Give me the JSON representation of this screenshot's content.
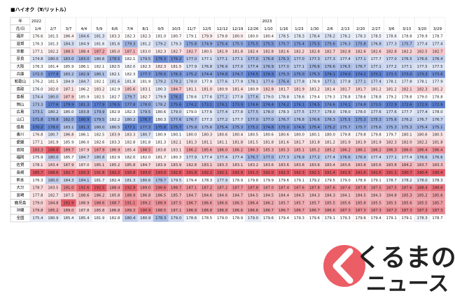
{
  "title": "■ハイオク（¥/リットル）",
  "table": {
    "year_header": "年",
    "date_header": "月/日",
    "years": [
      "2022",
      null,
      null,
      null,
      null,
      null,
      null,
      null,
      null,
      null,
      null,
      null,
      null,
      null,
      null,
      "2023",
      null,
      null,
      null,
      null,
      null,
      null,
      null,
      null,
      null,
      null,
      null
    ],
    "dates": [
      "1/4",
      "2/7",
      "3/7",
      "4/4",
      "5/9",
      "6/6",
      "7/4",
      "8/1",
      "9/5",
      "10/3",
      "11/7",
      "12/5",
      "12/12",
      "12/19",
      "12/26",
      "1/10",
      "1/16",
      "1/23",
      "1/30",
      "2/6",
      "2/13",
      "2/20",
      "2/27",
      "3/6",
      "3/13",
      "3/20",
      "3/29"
    ],
    "color_low": "#5b7fd0",
    "color_mid": "#ffffff",
    "color_high": "#e45a66",
    "rows": [
      {
        "name": "福井",
        "values": [
          "176.6",
          "181.5",
          "186.4",
          "184.6",
          "181.3",
          "183.3",
          "182.3",
          "182.3",
          "181.0",
          "180.7",
          "179.1",
          "179.9",
          "179.8",
          "180.0",
          "180.0",
          "180.4",
          "178.5",
          "178.3",
          "178.4",
          "178.2",
          "178.2",
          "178.3",
          "178.5",
          "178.6",
          "178.8",
          "178.9",
          "178.7"
        ]
      },
      {
        "name": "滋賀",
        "values": [
          "176.3",
          "181.3",
          "184.3",
          "184.9",
          "181.6",
          "181.6",
          "179.3",
          "181.2",
          "179.2",
          "179.3",
          "175.8",
          "174.9",
          "175.4",
          "175.5",
          "175.5",
          "175.5",
          "175.7",
          "175.4",
          "175.5",
          "175.6",
          "176.3",
          "175.8",
          "176.8",
          "177.3",
          "175.7",
          "177.4",
          "177.4"
        ]
      },
      {
        "name": "京都",
        "values": [
          "177.1",
          "182.2",
          "188.5",
          "188.4",
          "187.2",
          "185.0",
          "187.1",
          "183.0",
          "182.3",
          "182.7",
          "182.7",
          "180.5",
          "181.9",
          "181.8",
          "182.4",
          "182.8",
          "182.6",
          "182.2",
          "182.8",
          "182.7",
          "182.8",
          "182.6",
          "182.6",
          "182.8",
          "182.2",
          "182.5",
          "182.7"
        ]
      },
      {
        "name": "奈良",
        "values": [
          "174.8",
          "180.0",
          "183.0",
          "183.0",
          "180.6",
          "178.5",
          "182.1",
          "179.5",
          "176.3",
          "176.2",
          "177.0",
          "177.1",
          "177.1",
          "177.1",
          "177.0",
          "176.8",
          "176.3",
          "177.0",
          "177.3",
          "177.3",
          "177.4",
          "177.1",
          "177.7",
          "177.0",
          "176.5",
          "176.6",
          "176.4"
        ]
      },
      {
        "name": "大阪",
        "values": [
          "176.3",
          "181.4",
          "185.9",
          "186.1",
          "182.1",
          "182.5",
          "182.0",
          "182.3",
          "182.3",
          "181.5",
          "177.9",
          "176.8",
          "176.9",
          "177.0",
          "177.4",
          "176.9",
          "177.0",
          "177.1",
          "176.6",
          "176.6",
          "176.5",
          "176.7",
          "177.1",
          "177.2",
          "177.1",
          "177.5",
          "177.5"
        ]
      },
      {
        "name": "兵庫",
        "values": [
          "172.5",
          "177.8",
          "183.2",
          "182.9",
          "180.1",
          "182.1",
          "182.3",
          "177.7",
          "176.5",
          "176.3",
          "175.2",
          "174.4",
          "174.8",
          "174.7",
          "174.5",
          "174.3",
          "175.3",
          "175.0",
          "175.3",
          "174.1",
          "174.0",
          "174.2",
          "173.1",
          "173.3",
          "173.0",
          "173.3",
          "173.6"
        ]
      },
      {
        "name": "和歌山",
        "values": [
          "176.2",
          "181.5",
          "184.9",
          "184.7",
          "182.1",
          "181.6",
          "181.8",
          "181.9",
          "179.2",
          "178.2",
          "178.0",
          "177.9",
          "177.6",
          "177.9",
          "178.1",
          "177.6",
          "176.4",
          "177.8",
          "178.9",
          "177.1",
          "177.8",
          "177.1",
          "177.4",
          "178.1",
          "177.8",
          "178.1",
          "177.9"
        ]
      },
      {
        "name": "鳥取",
        "values": [
          "176.0",
          "182.0",
          "187.1",
          "186.2",
          "183.2",
          "182.9",
          "185.6",
          "183.1",
          "180.3",
          "184.7",
          "181.1",
          "181.0",
          "180.9",
          "181.4",
          "180.9",
          "182.8",
          "181.7",
          "181.9",
          "181.2",
          "181.4",
          "181.7",
          "181.7",
          "181.2",
          "181.2",
          "182.1",
          "182.3",
          "181.2"
        ]
      },
      {
        "name": "島根",
        "values": [
          "174.4",
          "180.0",
          "187.9",
          "185.9",
          "182.5",
          "182.7",
          "179.7",
          "182.7",
          "179.9",
          "176.2",
          "178.6",
          "177.6",
          "177.2",
          "177.8",
          "177.6",
          "179.0",
          "178.8",
          "178.6",
          "179.4",
          "179.3",
          "178.8",
          "178.6",
          "178.8",
          "179.2",
          "178.8",
          "179.0",
          "178.8"
        ]
      },
      {
        "name": "岡山",
        "values": [
          "173.3",
          "177.6",
          "179.9",
          "181.3",
          "177.9",
          "176.5",
          "177.8",
          "178.0",
          "178.2",
          "175.6",
          "174.2",
          "173.1",
          "174.1",
          "173.9",
          "174.6",
          "174.4",
          "174.2",
          "174.1",
          "174.5",
          "174.6",
          "174.1",
          "174.8",
          "173.5",
          "172.9",
          "172.6",
          "172.9",
          "172.9"
        ]
      },
      {
        "name": "広島",
        "values": [
          "173.1",
          "180.2",
          "185.0",
          "183.8",
          "179.9",
          "182.9",
          "182.3",
          "179.5",
          "180.6",
          "179.0",
          "179.0",
          "177.6",
          "177.4",
          "177.8",
          "177.5",
          "178.0",
          "178.3",
          "177.5",
          "177.7",
          "178.0",
          "178.0",
          "178.0",
          "177.6",
          "177.6",
          "177.7",
          "177.4",
          "178.0"
        ]
      },
      {
        "name": "山口",
        "values": [
          "171.8",
          "178.8",
          "182.0",
          "180.9",
          "179.5",
          "182.2",
          "180.2",
          "176.7",
          "180.3",
          "177.6",
          "176.7",
          "177.3",
          "177.2",
          "177.7",
          "177.0",
          "177.0",
          "176.7",
          "176.8",
          "176.6",
          "176.3",
          "175.5",
          "175.3",
          "175.3",
          "175.6",
          "176.2",
          "176.7",
          "176.7"
        ]
      },
      {
        "name": "徳島",
        "values": [
          "170.2",
          "178.0",
          "183.1",
          "181.3",
          "180.0",
          "180.5",
          "177.1",
          "177.3",
          "175.8",
          "175.7",
          "175.9",
          "175.6",
          "175.4",
          "175.3",
          "175.2",
          "174.8",
          "175.0",
          "174.9",
          "175.4",
          "175.2",
          "175.7",
          "175.7",
          "175.6",
          "175.3",
          "175.3",
          "175.4",
          "175.1"
        ]
      },
      {
        "name": "香川",
        "values": [
          "176.8",
          "180.7",
          "186.8",
          "186.1",
          "182.5",
          "183.9",
          "183.3",
          "180.7",
          "180.9",
          "180.1",
          "180.0",
          "180.3",
          "180.6",
          "180.4",
          "180.5",
          "180.6",
          "180.6",
          "180.0",
          "180.1",
          "180.0",
          "179.8",
          "179.8",
          "179.8",
          "179.7",
          "180.1",
          "180.6",
          "180.5"
        ]
      },
      {
        "name": "愛媛",
        "values": [
          "177.1",
          "181.9",
          "185.9",
          "186.0",
          "182.6",
          "183.3",
          "182.8",
          "181.8",
          "181.3",
          "182.1",
          "181.3",
          "181.1",
          "181.1",
          "181.8",
          "181.5",
          "181.8",
          "181.6",
          "181.7",
          "181.8",
          "181.2",
          "181.9",
          "181.9",
          "181.9",
          "182.3",
          "182.0",
          "182.2",
          "181.8"
        ]
      },
      {
        "name": "高知",
        "values": [
          "183.3",
          "188.8",
          "189.7",
          "187.9",
          "187.9",
          "186.9",
          "185.4",
          "188.5",
          "183.8",
          "183.1",
          "186.2",
          "185.6",
          "186.0",
          "186.2",
          "186.3",
          "185.3",
          "185.3",
          "185.1",
          "185.2",
          "185.2",
          "186.2",
          "186.1",
          "186.2",
          "186.3",
          "186.0",
          "186.4",
          "186.4"
        ]
      },
      {
        "name": "福岡",
        "values": [
          "175.9",
          "180.0",
          "185.7",
          "184.7",
          "180.8",
          "182.9",
          "182.0",
          "182.0",
          "181.7",
          "180.3",
          "177.9",
          "177.4",
          "177.4",
          "177.4",
          "176.7",
          "177.0",
          "177.3",
          "176.9",
          "177.2",
          "177.4",
          "176.6",
          "176.9",
          "177.4",
          "177.1",
          "177.4",
          "176.6",
          "176.6"
        ]
      },
      {
        "name": "佐賀",
        "values": [
          "178.1",
          "183.4",
          "187.9",
          "187.0",
          "185.1",
          "185.2",
          "185.8",
          "184.7",
          "183.9",
          "183.9",
          "182.8",
          "183.1",
          "183.3",
          "183.1",
          "183.2",
          "183.6",
          "183.6",
          "183.6",
          "183.6",
          "183.4",
          "183.6",
          "183.8",
          "183.6",
          "183.8",
          "184.2",
          "183.7",
          "183.3"
        ]
      },
      {
        "name": "長崎",
        "values": [
          "185.7",
          "188.6",
          "192.7",
          "193.3",
          "191.8",
          "192.2",
          "193.8",
          "193.0",
          "193.0",
          "192.8",
          "191.8",
          "192.2",
          "192.1",
          "192.9",
          "191.3",
          "192.0",
          "192.3",
          "192.3",
          "192.1",
          "191.4",
          "191.9",
          "191.6",
          "191.6",
          "191.1",
          "190.7",
          "190.4",
          "190.4"
        ]
      },
      {
        "name": "熊本",
        "values": [
          "176.3",
          "180.0",
          "184.3",
          "184.1",
          "181.7",
          "182.4",
          "181.3",
          "180.6",
          "178.7",
          "179.5",
          "179.4",
          "178.3",
          "177.9",
          "178.9",
          "179.8",
          "179.9",
          "179.6",
          "179.1",
          "179.2",
          "179.5",
          "179.0",
          "178.9",
          "179.1",
          "178.7",
          "178.2",
          "178.0",
          "178.3"
        ]
      },
      {
        "name": "大分",
        "values": [
          "178.7",
          "183.5",
          "191.0",
          "192.6",
          "192.5",
          "188.4",
          "192.9",
          "189.0",
          "190.6",
          "188.7",
          "187.1",
          "187.2",
          "187.2",
          "187.7",
          "187.8",
          "187.0",
          "187.4",
          "187.6",
          "187.8",
          "187.6",
          "187.6",
          "187.8",
          "187.5",
          "187.5",
          "187.6",
          "188.4",
          "188.6"
        ]
      },
      {
        "name": "宮崎",
        "values": [
          "177.8",
          "182.7",
          "187.5",
          "188.6",
          "186.2",
          "185.8",
          "188.9",
          "186.8",
          "186.5",
          "185.7",
          "184.7",
          "184.6",
          "184.6",
          "184.7",
          "184.5",
          "184.5",
          "184.4",
          "184.5",
          "184.3",
          "184.3",
          "184.1",
          "184.5",
          "184.3",
          "184.8",
          "185.3",
          "185.2",
          "185.6"
        ]
      },
      {
        "name": "鹿児島",
        "values": [
          "179.0",
          "184.8",
          "192.9",
          "188.9",
          "188.6",
          "188.7",
          "191.1",
          "189.2",
          "188.9",
          "187.5",
          "186.7",
          "186.6",
          "186.6",
          "186.5",
          "186.4",
          "186.2",
          "185.7",
          "185.7",
          "185.7",
          "185.5",
          "185.6",
          "185.8",
          "185.5",
          "185.5",
          "185.6",
          "185.5",
          "185.7"
        ]
      },
      {
        "name": "沖縄",
        "values": [
          "179.8",
          "185.2",
          "189.0",
          "187.8",
          "185.8",
          "186.8",
          "189.3",
          "190.9",
          "188.5",
          "187.1",
          "186.9",
          "186.8",
          "186.8",
          "186.6",
          "186.6",
          "186.7",
          "186.7",
          "186.7",
          "186.7",
          "186.6",
          "187.3",
          "187.3",
          "187.3",
          "187.3",
          "187.3",
          "187.3",
          "187.3"
        ]
      },
      {
        "name": "全国",
        "values": [
          "175.4",
          "180.9",
          "185.4",
          "185.4",
          "181.9",
          "182.8",
          "180.4",
          "180.9",
          "178.3",
          "179.0",
          "178.6",
          "178.5",
          "179.0",
          "178.9",
          "179.0",
          "179.6",
          "179.4",
          "179.3",
          "179.6",
          "179.1",
          "179.3",
          "179.6",
          "179.4",
          "179.1",
          "179.1",
          "178.3",
          "178.7"
        ]
      }
    ]
  },
  "logo": {
    "line1": "くるまの",
    "line2": "ニュース"
  }
}
